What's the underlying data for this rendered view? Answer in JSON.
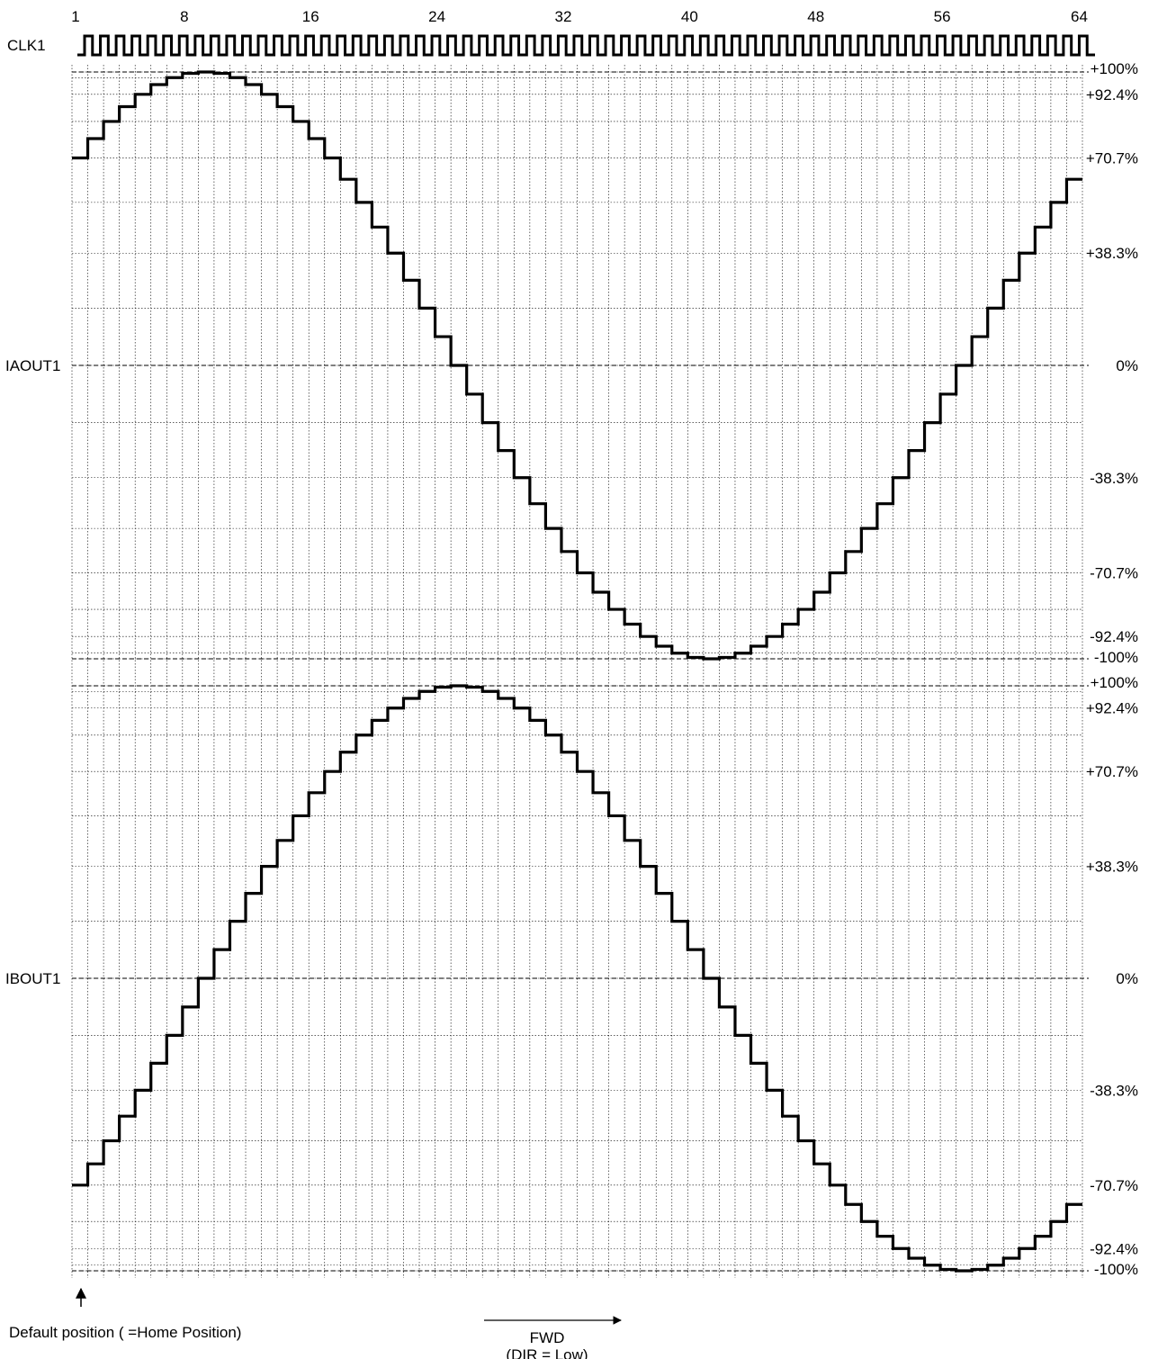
{
  "chart_data": {
    "type": "line",
    "step_labels": [
      "1",
      "8",
      "16",
      "24",
      "32",
      "40",
      "48",
      "56",
      "64"
    ],
    "step_label_positions": [
      1,
      8,
      16,
      24,
      32,
      40,
      48,
      56,
      64
    ],
    "clock": {
      "name": "CLK1",
      "pulses": 64
    },
    "panels": [
      {
        "name": "IAOUT1",
        "ylim": [
          -100,
          100
        ],
        "level_labels": [
          "+100%",
          "+92.4%",
          "+70.7%",
          "+38.3%",
          "0%",
          "-38.3%",
          "-70.7%",
          "-92.4%",
          "-100%"
        ],
        "level_values": [
          100,
          92.4,
          70.7,
          38.3,
          0,
          -38.3,
          -70.7,
          -92.4,
          -100
        ],
        "waveform": {
          "function": "cos",
          "steps_per_cycle": 64,
          "phase_step": 9,
          "start_step": 1,
          "end_step": 65
        }
      },
      {
        "name": "IBOUT1",
        "ylim": [
          -100,
          100
        ],
        "level_labels": [
          "+100%",
          "+92.4%",
          "+70.7%",
          "+38.3%",
          "0%",
          "-38.3%",
          "-70.7%",
          "-92.4%",
          "-100%"
        ],
        "level_values": [
          100,
          92.4,
          70.7,
          38.3,
          0,
          -38.3,
          -70.7,
          -92.4,
          -100
        ],
        "waveform": {
          "function": "cos",
          "steps_per_cycle": 64,
          "phase_step": 25,
          "start_step": 1,
          "end_step": 65
        }
      }
    ],
    "grid": true,
    "annotations": {
      "home": "Default position ( =Home Position)",
      "direction": "FWD",
      "direction_note": "(DIR = Low)"
    }
  }
}
